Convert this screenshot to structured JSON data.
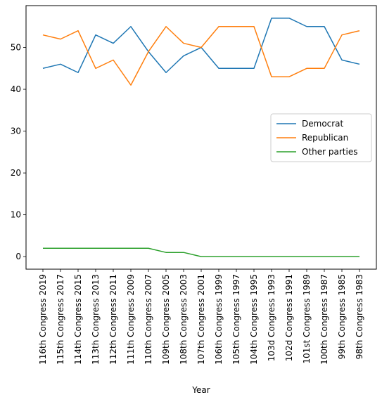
{
  "chart_data": {
    "type": "line",
    "title": "",
    "xlabel": "Year",
    "ylabel": "",
    "ylim": [
      -3,
      60
    ],
    "yticks": [
      0,
      10,
      20,
      30,
      40,
      50
    ],
    "grid": false,
    "legend_position": "center-right",
    "categories": [
      "116th Congress 2019",
      "115th Congress 2017",
      "114th Congress 2015",
      "113th Congress 2013",
      "112th Congress 2011",
      "111th Congress 2009",
      "110th Congress 2007",
      "109th Congress 2005",
      "108th Congress 2003",
      "107th Congress 2001",
      "106th Congress 1999",
      "105th Congress 1997",
      "104th Congress 1995",
      "103d Congress 1993",
      "102d Congress 1991",
      "101st Congress 1989",
      "100th Congress 1987",
      "99th Congress 1985",
      "98th Congress 1983"
    ],
    "series": [
      {
        "name": "Democrat",
        "color": "#1f77b4",
        "values": [
          45,
          46,
          44,
          53,
          51,
          55,
          49,
          44,
          48,
          50,
          45,
          45,
          45,
          57,
          57,
          55,
          55,
          47,
          46
        ]
      },
      {
        "name": "Republican",
        "color": "#ff7f0e",
        "values": [
          53,
          52,
          54,
          45,
          47,
          41,
          49,
          55,
          51,
          50,
          55,
          55,
          55,
          43,
          43,
          45,
          45,
          53,
          54
        ]
      },
      {
        "name": "Other parties",
        "color": "#2ca02c",
        "values": [
          2,
          2,
          2,
          2,
          2,
          2,
          2,
          1,
          1,
          0,
          0,
          0,
          0,
          0,
          0,
          0,
          0,
          0,
          0
        ]
      }
    ]
  }
}
